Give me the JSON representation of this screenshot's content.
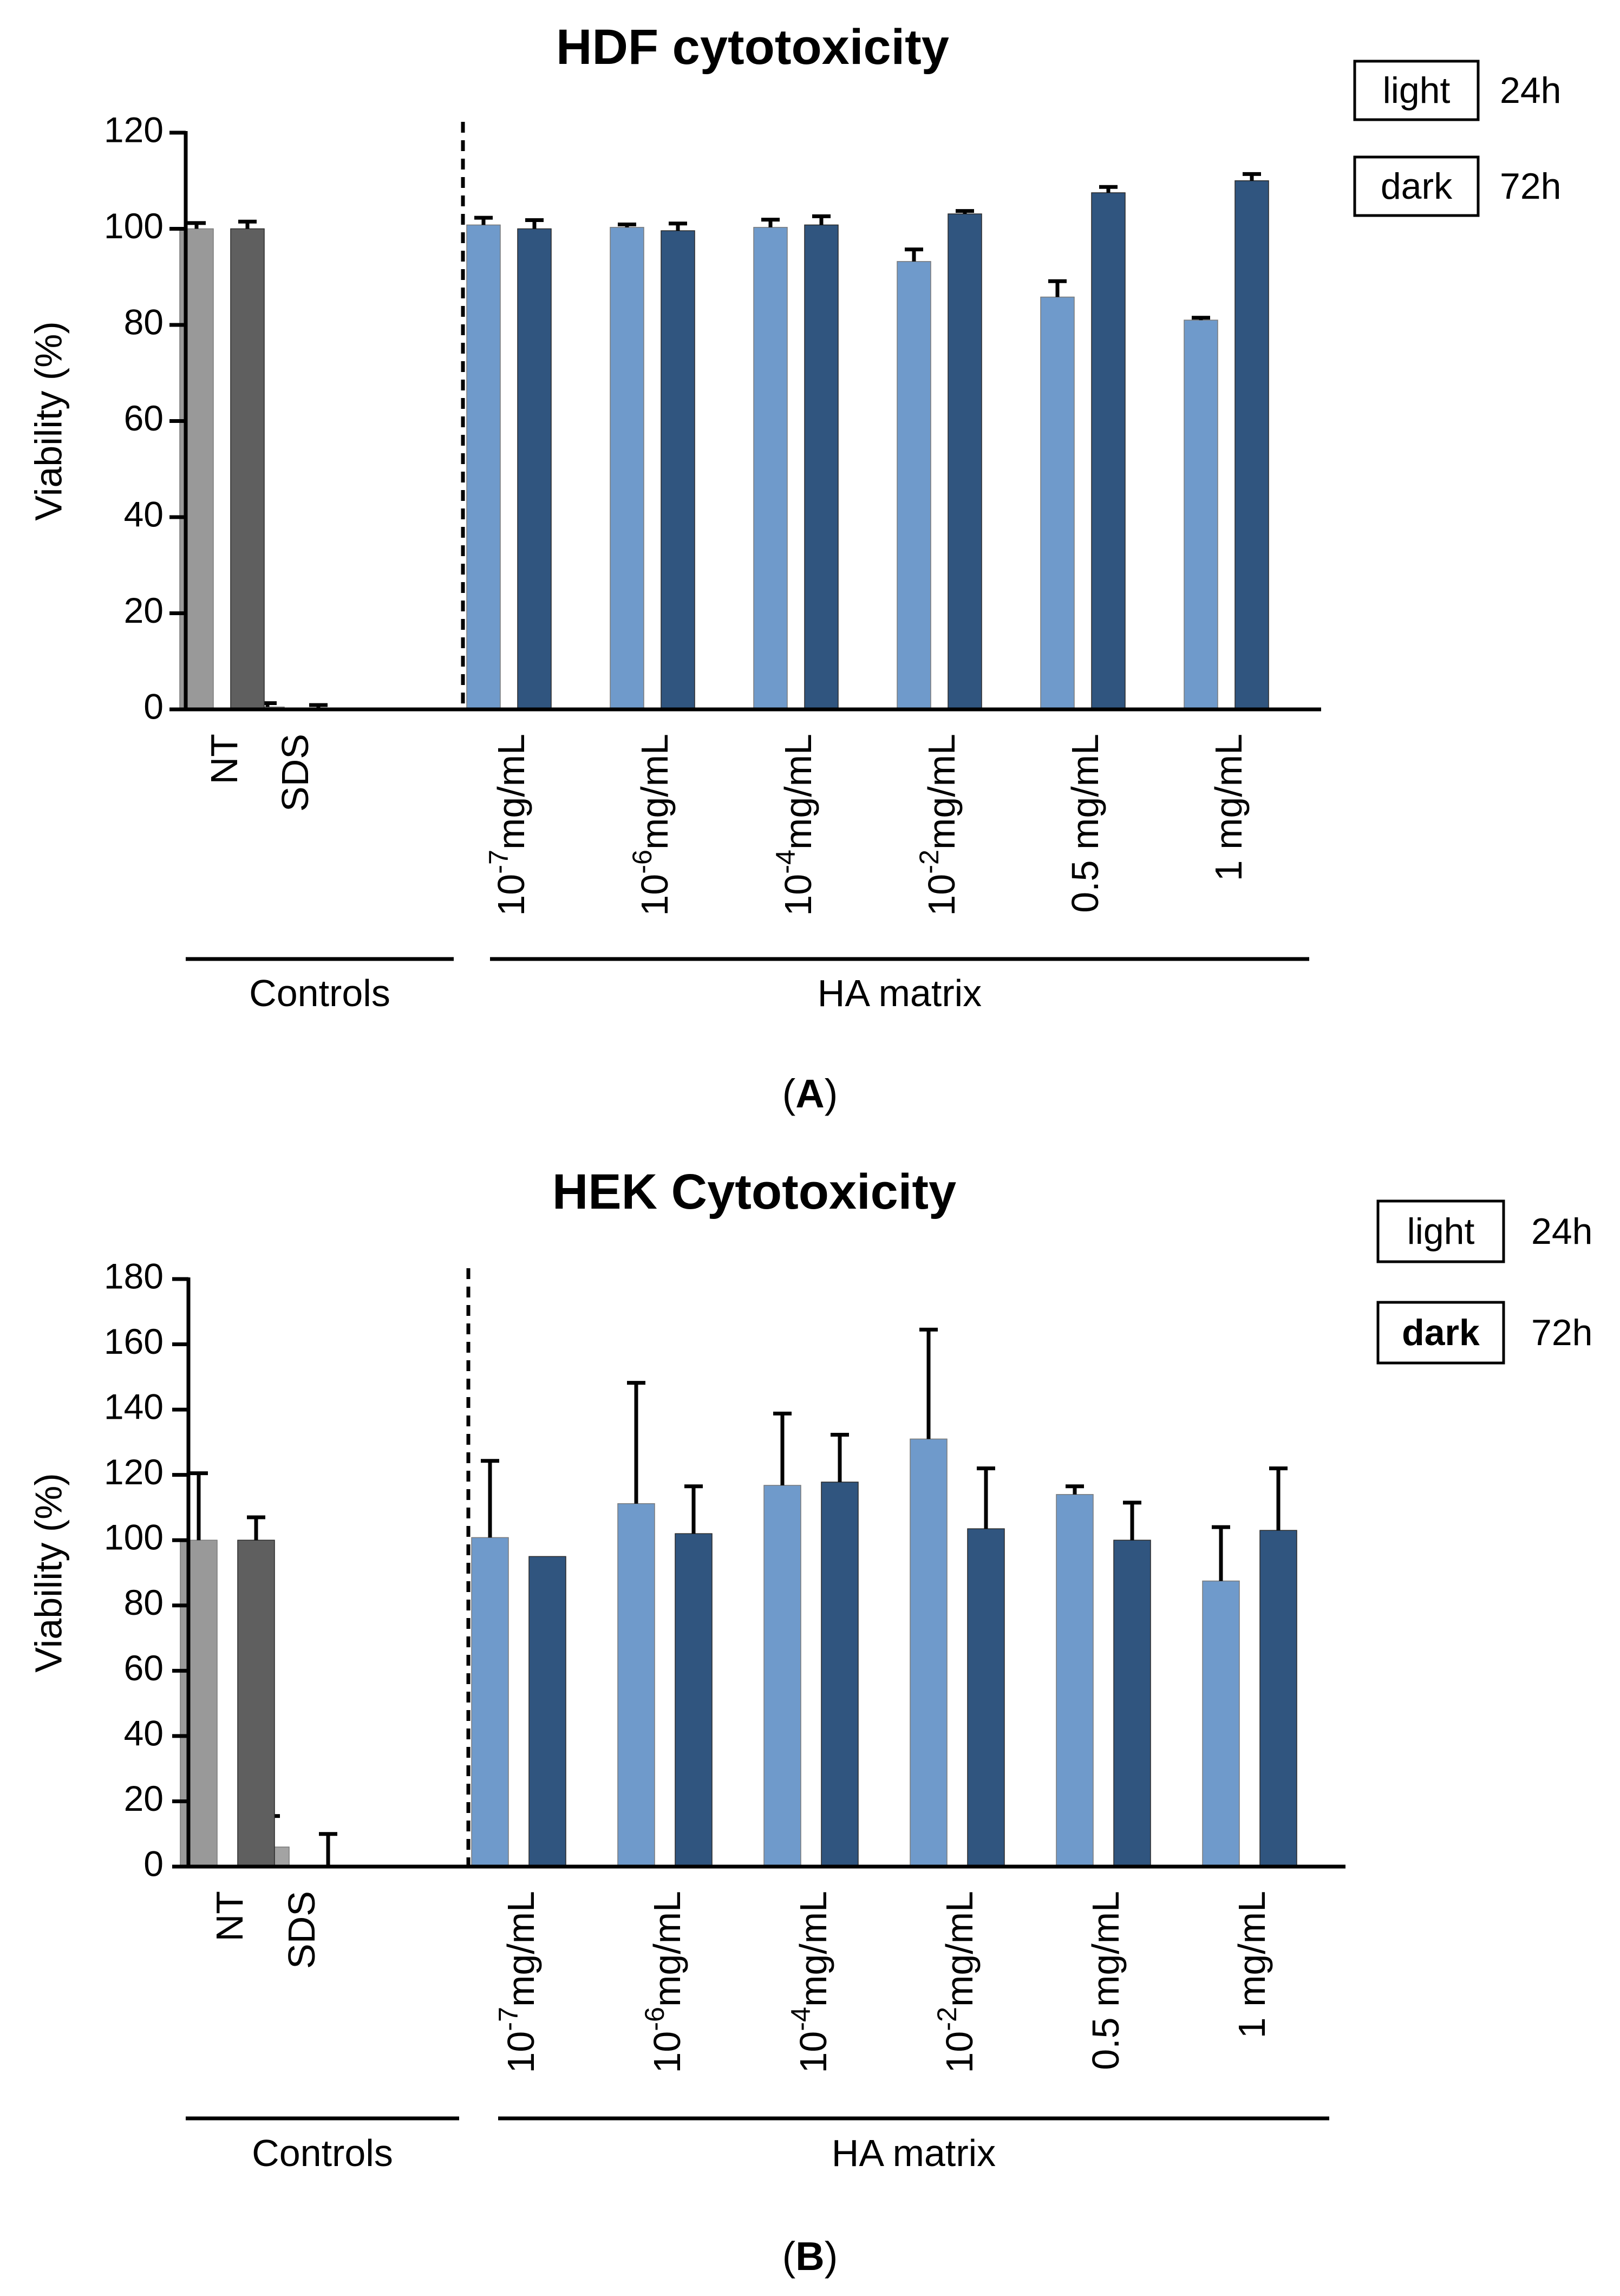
{
  "colors": {
    "nt_light": "#999999",
    "nt_dark": "#5f5f5f",
    "sds_light": "#a3a3a3",
    "sds_dark": "#5f5f5f",
    "ha_light": "#6f9acb",
    "ha_dark": "#30557f",
    "axis": "#000000"
  },
  "chart_data": [
    {
      "type": "bar",
      "panel_label": "A",
      "title": "HDF cytotoxicity",
      "xlabel": "",
      "ylabel": "Viability (%)",
      "ylim": [
        0,
        120
      ],
      "yticks": [
        0,
        20,
        40,
        60,
        80,
        100,
        120
      ],
      "grid": false,
      "legend": [
        {
          "box": "light",
          "label": "24h",
          "bold": false
        },
        {
          "box": "dark",
          "label": "72h",
          "bold": false
        }
      ],
      "groups": [
        {
          "name": "Controls",
          "categories": [
            0,
            1
          ]
        },
        {
          "name": "HA matrix",
          "categories": [
            2,
            3,
            4,
            5,
            6,
            7
          ]
        }
      ],
      "categories": [
        {
          "base": "NT",
          "sup": "",
          "unit": ""
        },
        {
          "base": "SDS",
          "sup": "",
          "unit": ""
        },
        {
          "base": "10",
          "sup": "-7",
          "unit": "mg/mL"
        },
        {
          "base": "10",
          "sup": "-6",
          "unit": "mg/mL"
        },
        {
          "base": "10",
          "sup": "-4",
          "unit": "mg/mL"
        },
        {
          "base": "10",
          "sup": "-2",
          "unit": "mg/mL"
        },
        {
          "base": "0.5 mg/mL",
          "sup": "",
          "unit": ""
        },
        {
          "base": "1 mg/mL",
          "sup": "",
          "unit": ""
        }
      ],
      "series": [
        {
          "name": "24h",
          "values": [
            100,
            0.5,
            100.8,
            100.3,
            100.3,
            93.2,
            85.8,
            81.0
          ],
          "errors": [
            1.2,
            0.8,
            1.5,
            0.6,
            1.6,
            2.5,
            3.3,
            0.5
          ]
        },
        {
          "name": "72h",
          "values": [
            100,
            0.3,
            100.0,
            99.6,
            100.8,
            103.1,
            107.5,
            110.0
          ],
          "errors": [
            1.5,
            0.6,
            1.8,
            1.5,
            1.8,
            0.6,
            1.2,
            1.4
          ]
        }
      ]
    },
    {
      "type": "bar",
      "panel_label": "B",
      "title": "HEK Cytotoxicity",
      "xlabel": "",
      "ylabel": "Viability (%)",
      "ylim": [
        0,
        180
      ],
      "yticks": [
        0,
        20,
        40,
        60,
        80,
        100,
        120,
        140,
        160,
        180
      ],
      "grid": false,
      "legend": [
        {
          "box": "light",
          "label": "24h",
          "bold": false
        },
        {
          "box": "dark",
          "label": "72h",
          "bold": true
        }
      ],
      "groups": [
        {
          "name": "Controls",
          "categories": [
            0,
            1
          ]
        },
        {
          "name": "HA matrix",
          "categories": [
            2,
            3,
            4,
            5,
            6,
            7
          ]
        }
      ],
      "categories": [
        {
          "base": "NT",
          "sup": "",
          "unit": ""
        },
        {
          "base": "SDS",
          "sup": "",
          "unit": ""
        },
        {
          "base": "10",
          "sup": "-7",
          "unit": "mg/mL"
        },
        {
          "base": "10",
          "sup": "-6",
          "unit": "mg/mL"
        },
        {
          "base": "10",
          "sup": "-4",
          "unit": "mg/mL"
        },
        {
          "base": "10",
          "sup": "-2",
          "unit": "mg/mL"
        },
        {
          "base": "0.5 mg/mL",
          "sup": "",
          "unit": ""
        },
        {
          "base": "1 mg/mL",
          "sup": "",
          "unit": ""
        }
      ],
      "series": [
        {
          "name": "24h",
          "values": [
            100,
            6,
            100.8,
            111.2,
            116.8,
            131,
            114,
            87.5
          ],
          "errors": [
            20.5,
            9.5,
            23.5,
            37,
            22,
            33.5,
            2.5,
            16.5
          ]
        },
        {
          "name": "72h",
          "values": [
            100,
            0,
            95,
            102,
            117.8,
            103.5,
            100,
            103
          ],
          "errors": [
            7,
            10,
            0,
            14.5,
            14.5,
            18.5,
            11.5,
            19
          ]
        }
      ]
    }
  ]
}
